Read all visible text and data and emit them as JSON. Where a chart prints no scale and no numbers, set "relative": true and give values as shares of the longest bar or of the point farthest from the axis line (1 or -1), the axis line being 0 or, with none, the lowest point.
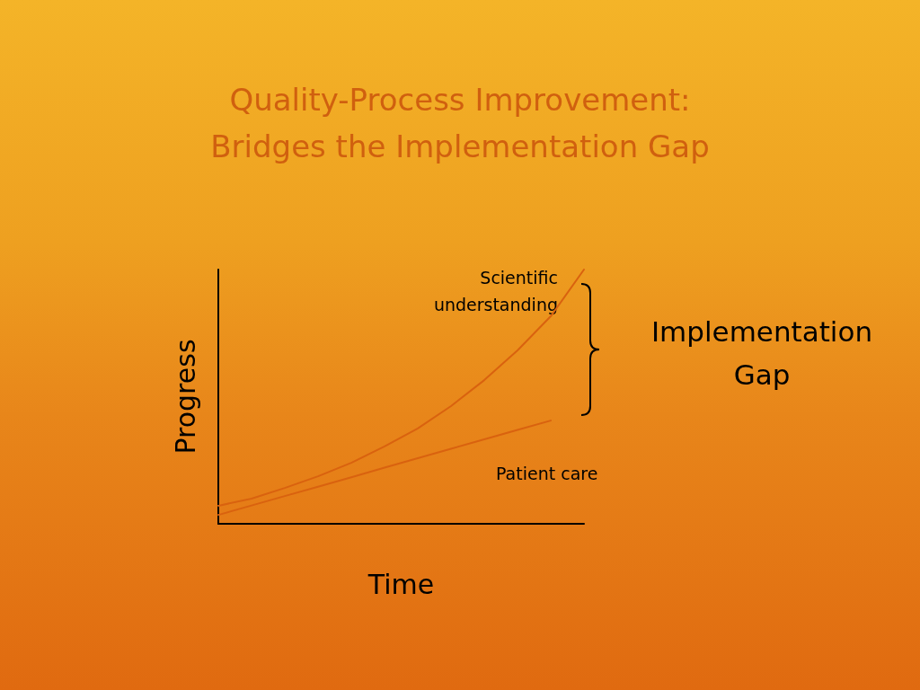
{
  "chart_data": {
    "type": "line",
    "title": "Quality-Process Improvement:\nBridges the Implementation Gap",
    "xlabel": "Time",
    "ylabel": "Progress",
    "relative": true,
    "categories": [
      null,
      null,
      null,
      null,
      null,
      null,
      null,
      null,
      null,
      null,
      null,
      null
    ],
    "series": [
      {
        "name": "Scientific understanding",
        "color": "#d9620f",
        "values": [
          0.071,
          0.099,
          0.141,
          0.187,
          0.24,
          0.304,
          0.375,
          0.463,
          0.565,
          0.682,
          0.816,
          1
        ]
      },
      {
        "name": "Patient care",
        "color": "#d9620f",
        "values": [
          0.035,
          0.072,
          0.109,
          0.146,
          0.183,
          0.221,
          0.258,
          0.295,
          0.332,
          0.369,
          0.406,
          null
        ]
      }
    ],
    "annotations": [
      "Implementation Gap"
    ],
    "grid": false,
    "legend": false,
    "marker": "none",
    "line_style": "solid"
  }
}
